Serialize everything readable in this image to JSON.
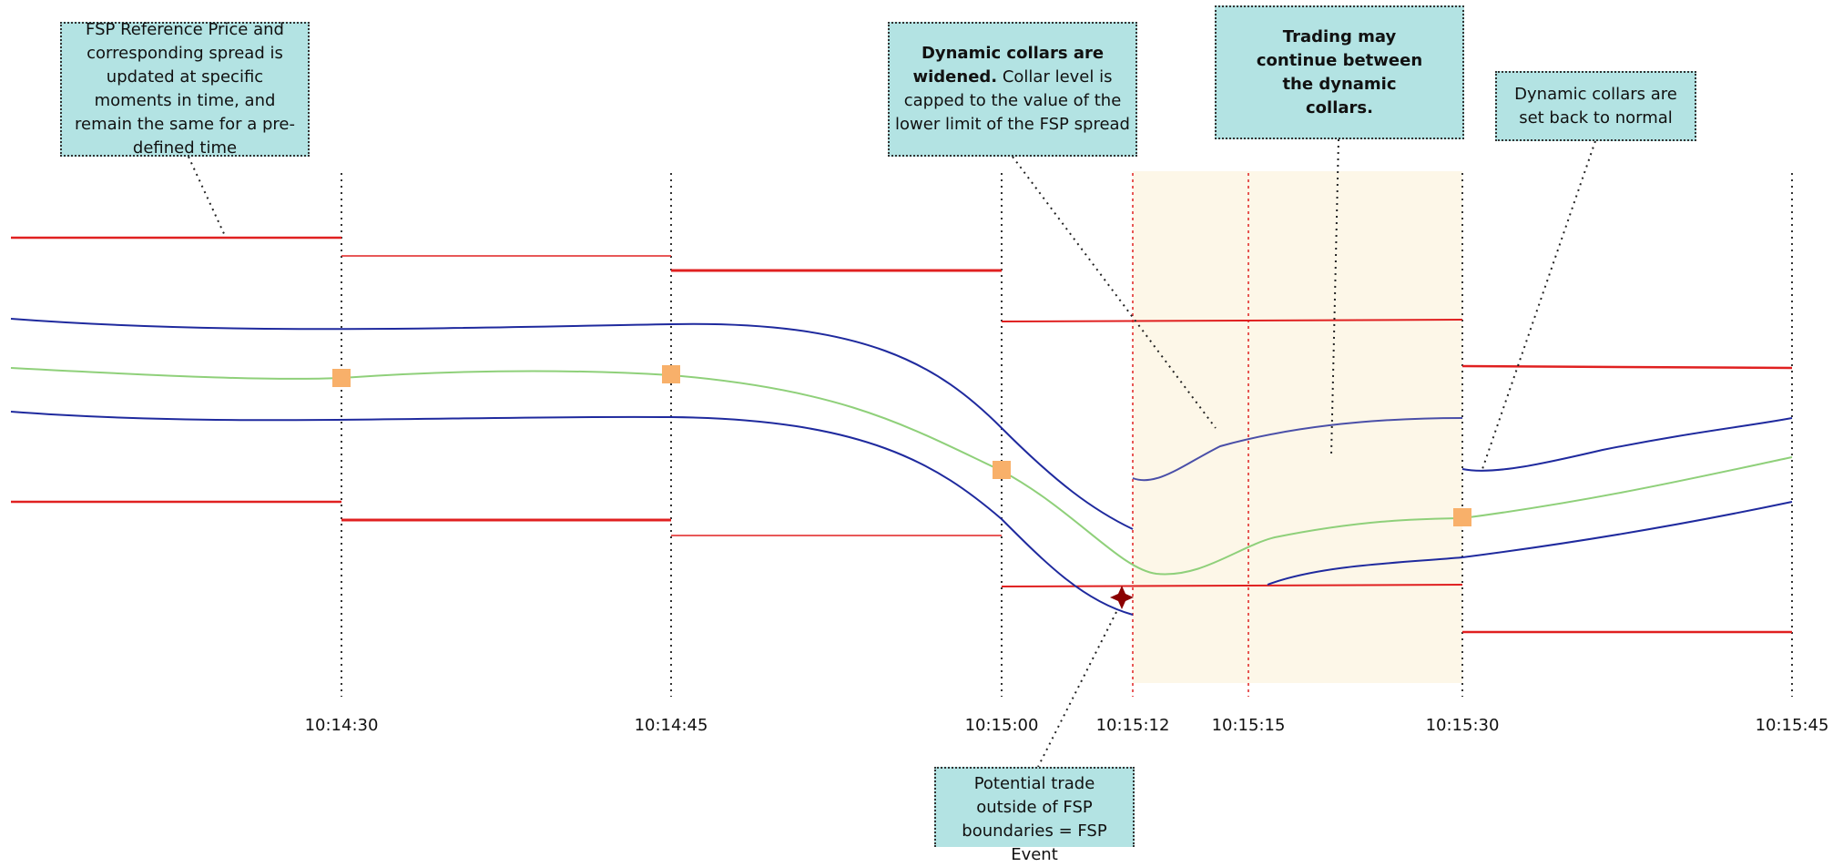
{
  "callouts": {
    "fsp_reference": "FSP Reference Price and corresponding spread is updated at specific moments in time, and remain the same for a pre-defined time",
    "widened_bold": "Dynamic collars are widened.",
    "widened_rest": " Collar level is capped to the value of the lower limit of the FSP spread",
    "trading_continue": "Trading may continue between the dynamic collars.",
    "set_back": "Dynamic collars are set back to normal",
    "potential_trade": "Potential trade outside of FSP boundaries = FSP Event"
  },
  "time_labels": [
    "10:14:30",
    "10:14:45",
    "10:15:00",
    "10:15:12",
    "10:15:15",
    "10:15:30",
    "10:15:45"
  ],
  "colors": {
    "fsp_spread": "#e02020",
    "collar": "#1f2a9e",
    "reference": "#8fd07a",
    "marker": "#f8b06a",
    "highlight": "#fdf7e8",
    "callout_bg": "#b3e3e3",
    "event_star": "#8b0000"
  },
  "icons": {
    "event": "four-point-star-icon",
    "reference_point": "square-marker-icon"
  }
}
